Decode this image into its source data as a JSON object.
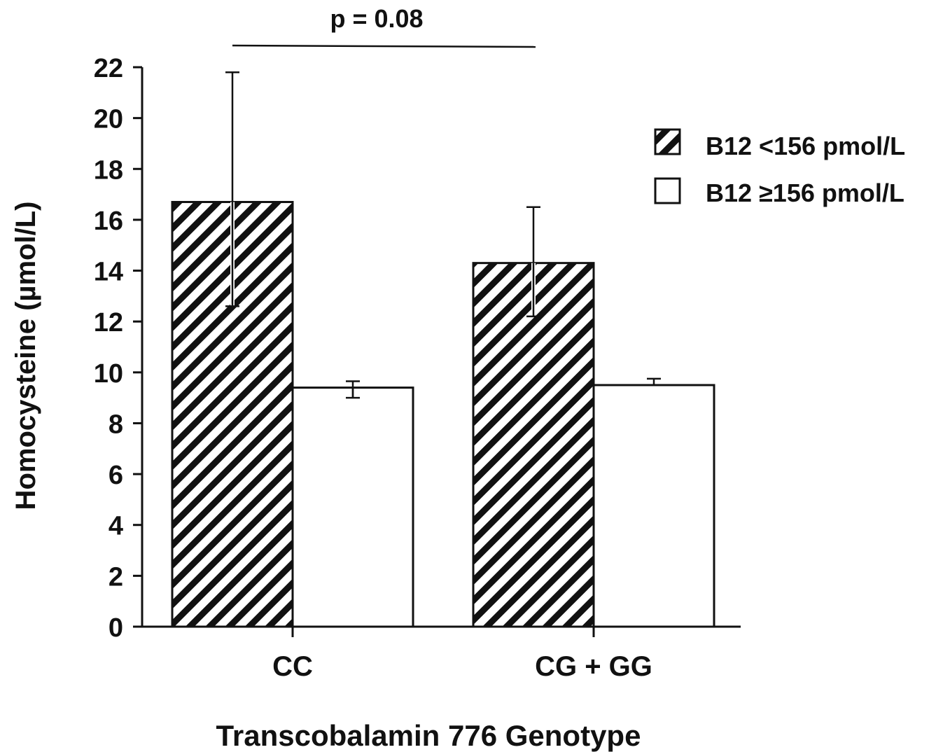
{
  "chart_data": {
    "type": "bar",
    "categories": [
      "CC",
      "CG + GG"
    ],
    "series": [
      {
        "name": "B12 <156 pmol/L",
        "values": [
          16.7,
          14.3
        ],
        "error_upper": [
          21.8,
          16.5
        ],
        "error_lower": [
          12.6,
          12.2
        ],
        "fill": "hatched"
      },
      {
        "name": "B12 ≥156 pmol/L",
        "values": [
          9.4,
          9.5
        ],
        "error_upper": [
          9.65,
          9.75
        ],
        "error_lower": [
          9.0,
          null
        ],
        "fill": "white"
      }
    ],
    "xlabel": "Transcobalamin 776 Genotype",
    "ylabel": "Homocysteine (µmol/L)",
    "ylim": [
      0,
      22
    ],
    "yticks": [
      "0",
      "2",
      "4",
      "6",
      "8",
      "10",
      "12",
      "14",
      "16",
      "18",
      "20",
      "22"
    ],
    "annotation": "p = 0.08",
    "legend_position": "top-right",
    "grid": false,
    "colors": {
      "stroke": "#111111",
      "background": "#ffffff"
    }
  }
}
